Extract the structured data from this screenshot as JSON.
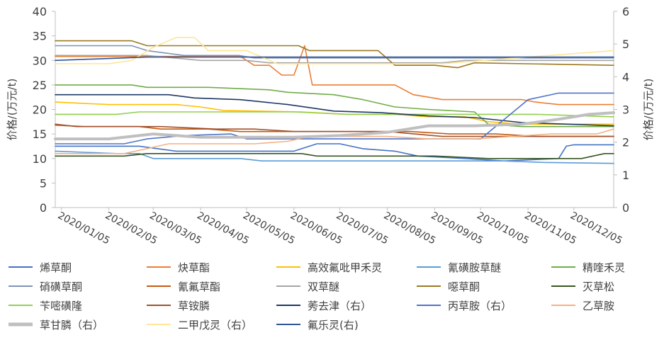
{
  "chart_data": {
    "type": "line",
    "y_left": {
      "label": "价格/(万元/t)",
      "ylim": [
        0,
        40
      ],
      "ticks": [
        "0",
        "5",
        "10",
        "15",
        "20",
        "25",
        "30",
        "35",
        "40"
      ]
    },
    "y_right": {
      "label": "价格/(万元/t)",
      "ylim": [
        0,
        6
      ],
      "ticks": [
        "0",
        "1",
        "2",
        "3",
        "4",
        "5",
        "6"
      ]
    },
    "x_range": [
      "2020/01/01",
      "2020/12/31"
    ],
    "x_ticks": [
      "2020/01/05",
      "2020/02/05",
      "2020/03/05",
      "2020/04/05",
      "2020/05/05",
      "2020/06/05",
      "2020/07/05",
      "2020/08/05",
      "2020/09/05",
      "2020/10/05",
      "2020/11/05",
      "2020/12/05"
    ],
    "grid": false,
    "legend_position": "bottom",
    "series": [
      {
        "name": "烯草酮",
        "axis": "left",
        "color": "#4472c4",
        "width": 1.6,
        "points": [
          [
            "2020/01/01",
            12.5
          ],
          [
            "2020/02/25",
            12.5
          ],
          [
            "2020/03/08",
            12.0
          ],
          [
            "2020/03/20",
            11.5
          ],
          [
            "2020/04/30",
            11.5
          ],
          [
            "2020/06/05",
            11.5
          ],
          [
            "2020/06/20",
            13.0
          ],
          [
            "2020/07/05",
            13.0
          ],
          [
            "2020/07/20",
            12.0
          ],
          [
            "2020/08/10",
            11.5
          ],
          [
            "2020/08/25",
            10.5
          ],
          [
            "2020/09/25",
            10.0
          ],
          [
            "2020/10/20",
            9.5
          ],
          [
            "2020/11/25",
            10.0
          ],
          [
            "2020/11/30",
            12.5
          ],
          [
            "2020/12/05",
            12.8
          ],
          [
            "2020/12/31",
            12.8
          ]
        ]
      },
      {
        "name": "炔草酯",
        "axis": "left",
        "color": "#ed7d31",
        "width": 1.6,
        "points": [
          [
            "2020/01/01",
            30.8
          ],
          [
            "2020/05/01",
            30.8
          ],
          [
            "2020/05/10",
            29.0
          ],
          [
            "2020/05/20",
            29.0
          ],
          [
            "2020/05/28",
            27.0
          ],
          [
            "2020/06/05",
            27.0
          ],
          [
            "2020/06/12",
            33.0
          ],
          [
            "2020/06/17",
            25.0
          ],
          [
            "2020/07/25",
            25.0
          ],
          [
            "2020/08/10",
            25.0
          ],
          [
            "2020/08/22",
            23.0
          ],
          [
            "2020/09/01",
            22.5
          ],
          [
            "2020/09/10",
            22.0
          ],
          [
            "2020/10/15",
            22.0
          ],
          [
            "2020/11/01",
            22.0
          ],
          [
            "2020/11/10",
            21.5
          ],
          [
            "2020/11/25",
            21.0
          ],
          [
            "2020/12/31",
            21.0
          ]
        ]
      },
      {
        "name": "高效氟吡甲禾灵",
        "axis": "left",
        "color": "#ffc000",
        "width": 1.6,
        "points": [
          [
            "2020/01/01",
            21.5
          ],
          [
            "2020/02/05",
            21.0
          ],
          [
            "2020/03/20",
            21.0
          ],
          [
            "2020/04/05",
            20.5
          ],
          [
            "2020/04/20",
            19.8
          ],
          [
            "2020/06/10",
            19.5
          ],
          [
            "2020/07/10",
            19.0
          ],
          [
            "2020/08/10",
            19.0
          ],
          [
            "2020/09/01",
            18.5
          ],
          [
            "2020/09/25",
            18.5
          ],
          [
            "2020/10/10",
            17.5
          ],
          [
            "2020/11/01",
            17.0
          ],
          [
            "2020/12/31",
            17.0
          ]
        ]
      },
      {
        "name": "氰磺胺草醚",
        "axis": "left",
        "color": "#5b9bd5",
        "width": 1.6,
        "points": [
          [
            "2020/01/01",
            11.5
          ],
          [
            "2020/02/10",
            11.0
          ],
          [
            "2020/02/25",
            11.0
          ],
          [
            "2020/03/05",
            10.0
          ],
          [
            "2020/05/01",
            10.0
          ],
          [
            "2020/05/15",
            9.5
          ],
          [
            "2020/09/10",
            9.5
          ],
          [
            "2020/10/20",
            9.5
          ],
          [
            "2020/11/15",
            9.2
          ],
          [
            "2020/12/31",
            9.0
          ]
        ]
      },
      {
        "name": "精喹禾灵",
        "axis": "left",
        "color": "#70ad47",
        "width": 1.6,
        "points": [
          [
            "2020/01/01",
            25.0
          ],
          [
            "2020/02/20",
            25.0
          ],
          [
            "2020/03/01",
            24.5
          ],
          [
            "2020/04/10",
            24.5
          ],
          [
            "2020/05/20",
            24.0
          ],
          [
            "2020/06/01",
            23.5
          ],
          [
            "2020/07/01",
            23.0
          ],
          [
            "2020/07/20",
            22.0
          ],
          [
            "2020/08/10",
            20.5
          ],
          [
            "2020/09/01",
            20.0
          ],
          [
            "2020/10/01",
            19.5
          ],
          [
            "2020/10/10",
            17.0
          ],
          [
            "2020/11/01",
            16.5
          ],
          [
            "2020/12/31",
            16.5
          ]
        ]
      },
      {
        "name": "硝磺草酮",
        "axis": "left",
        "color": "#7f93b8",
        "width": 1.6,
        "points": [
          [
            "2020/01/01",
            33.0
          ],
          [
            "2020/02/20",
            33.0
          ],
          [
            "2020/03/01",
            32.0
          ],
          [
            "2020/03/25",
            31.0
          ],
          [
            "2020/04/30",
            31.0
          ],
          [
            "2020/05/10",
            30.5
          ],
          [
            "2020/06/05",
            30.5
          ],
          [
            "2020/12/31",
            30.5
          ]
        ]
      },
      {
        "name": "氰氟草酯",
        "axis": "left",
        "color": "#c55a11",
        "width": 1.6,
        "points": [
          [
            "2020/01/01",
            16.8
          ],
          [
            "2020/01/20",
            16.5
          ],
          [
            "2020/02/25",
            16.5
          ],
          [
            "2020/03/10",
            16.0
          ],
          [
            "2020/04/10",
            16.0
          ],
          [
            "2020/05/01",
            15.5
          ],
          [
            "2020/06/05",
            15.5
          ],
          [
            "2020/08/20",
            15.5
          ],
          [
            "2020/09/15",
            15.0
          ],
          [
            "2020/10/15",
            15.0
          ],
          [
            "2020/11/10",
            14.5
          ],
          [
            "2020/12/31",
            14.5
          ]
        ]
      },
      {
        "name": "双草醚",
        "axis": "left",
        "color": "#a5a5a5",
        "width": 1.6,
        "points": [
          [
            "2020/01/01",
            31.0
          ],
          [
            "2020/03/01",
            31.0
          ],
          [
            "2020/04/05",
            30.0
          ],
          [
            "2020/05/05",
            30.0
          ],
          [
            "2020/05/20",
            29.5
          ],
          [
            "2020/08/10",
            29.5
          ],
          [
            "2020/09/10",
            29.5
          ],
          [
            "2020/09/25",
            30.0
          ],
          [
            "2020/12/31",
            30.0
          ]
        ]
      },
      {
        "name": "噁草酮",
        "axis": "left",
        "color": "#9c7a24",
        "width": 1.6,
        "points": [
          [
            "2020/01/01",
            34.0
          ],
          [
            "2020/02/20",
            34.0
          ],
          [
            "2020/03/01",
            33.0
          ],
          [
            "2020/04/05",
            33.0
          ],
          [
            "2020/06/08",
            33.0
          ],
          [
            "2020/06/15",
            32.0
          ],
          [
            "2020/07/30",
            32.0
          ],
          [
            "2020/08/10",
            29.0
          ],
          [
            "2020/09/05",
            29.0
          ],
          [
            "2020/09/20",
            28.5
          ],
          [
            "2020/10/01",
            29.5
          ],
          [
            "2020/12/31",
            29.0
          ]
        ]
      },
      {
        "name": "灭草松",
        "axis": "left",
        "color": "#375623",
        "width": 1.6,
        "points": [
          [
            "2020/01/01",
            10.5
          ],
          [
            "2020/02/15",
            10.5
          ],
          [
            "2020/03/01",
            11.0
          ],
          [
            "2020/06/10",
            11.0
          ],
          [
            "2020/06/20",
            10.5
          ],
          [
            "2020/08/01",
            10.5
          ],
          [
            "2020/09/05",
            10.5
          ],
          [
            "2020/10/10",
            10.0
          ],
          [
            "2020/11/20",
            10.0
          ],
          [
            "2020/12/10",
            10.0
          ],
          [
            "2020/12/25",
            11.0
          ],
          [
            "2020/12/31",
            11.0
          ]
        ]
      },
      {
        "name": "苄嘧磺隆",
        "axis": "left",
        "color": "#92d050",
        "width": 1.6,
        "points": [
          [
            "2020/01/01",
            19.0
          ],
          [
            "2020/02/10",
            19.0
          ],
          [
            "2020/02/25",
            19.5
          ],
          [
            "2020/06/05",
            19.5
          ],
          [
            "2020/07/10",
            19.0
          ],
          [
            "2020/08/20",
            19.0
          ],
          [
            "2020/09/15",
            19.0
          ],
          [
            "2020/11/10",
            19.0
          ],
          [
            "2020/12/31",
            18.5
          ]
        ]
      },
      {
        "name": "草铵膦",
        "axis": "left",
        "color": "#a0522d",
        "width": 1.6,
        "points": [
          [
            "2020/01/01",
            17.0
          ],
          [
            "2020/01/15",
            16.5
          ],
          [
            "2020/03/10",
            16.5
          ],
          [
            "2020/04/15",
            16.0
          ],
          [
            "2020/05/10",
            16.0
          ],
          [
            "2020/06/05",
            15.5
          ],
          [
            "2020/08/05",
            15.5
          ],
          [
            "2020/09/10",
            14.5
          ],
          [
            "2020/10/10",
            14.5
          ],
          [
            "2020/11/15",
            14.5
          ],
          [
            "2020/12/01",
            14.5
          ],
          [
            "2020/12/31",
            14.5
          ]
        ]
      },
      {
        "name": "莠去津（右）",
        "axis": "right",
        "color": "#1f3864",
        "width": 1.6,
        "points": [
          [
            "2020/01/01",
            3.45
          ],
          [
            "2020/01/15",
            3.45
          ],
          [
            "2020/02/15",
            3.45
          ],
          [
            "2020/03/15",
            3.45
          ],
          [
            "2020/04/01",
            3.35
          ],
          [
            "2020/05/01",
            3.3
          ],
          [
            "2020/06/01",
            3.15
          ],
          [
            "2020/07/01",
            2.95
          ],
          [
            "2020/08/01",
            2.9
          ],
          [
            "2020/09/01",
            2.8
          ],
          [
            "2020/10/01",
            2.75
          ],
          [
            "2020/11/01",
            2.6
          ],
          [
            "2020/12/01",
            2.55
          ],
          [
            "2020/12/31",
            2.5
          ]
        ]
      },
      {
        "name": "丙草胺（右）",
        "axis": "right",
        "color": "#4f74c8",
        "width": 1.6,
        "points": [
          [
            "2020/01/01",
            1.95
          ],
          [
            "2020/02/15",
            1.95
          ],
          [
            "2020/03/01",
            2.1
          ],
          [
            "2020/03/25",
            2.2
          ],
          [
            "2020/04/25",
            2.25
          ],
          [
            "2020/05/05",
            2.1
          ],
          [
            "2020/06/05",
            2.1
          ],
          [
            "2020/07/05",
            2.1
          ],
          [
            "2020/08/05",
            2.1
          ],
          [
            "2020/09/05",
            2.1
          ],
          [
            "2020/10/05",
            2.1
          ],
          [
            "2020/11/05",
            3.3
          ],
          [
            "2020/11/25",
            3.5
          ],
          [
            "2020/12/31",
            3.5
          ]
        ]
      },
      {
        "name": "乙草胺",
        "axis": "left",
        "color": "#f4b183",
        "width": 1.6,
        "points": [
          [
            "2020/01/01",
            11.0
          ],
          [
            "2020/02/15",
            11.0
          ],
          [
            "2020/03/01",
            12.0
          ],
          [
            "2020/03/15",
            13.0
          ],
          [
            "2020/05/10",
            13.0
          ],
          [
            "2020/06/01",
            13.5
          ],
          [
            "2020/06/15",
            14.5
          ],
          [
            "2020/07/10",
            14.5
          ],
          [
            "2020/08/05",
            14.5
          ],
          [
            "2020/09/01",
            14.0
          ],
          [
            "2020/10/01",
            14.0
          ],
          [
            "2020/11/20",
            15.0
          ],
          [
            "2020/12/20",
            15.0
          ],
          [
            "2020/12/31",
            16.0
          ]
        ]
      },
      {
        "name": "草甘膦（右）",
        "axis": "right",
        "color": "#bfbfbf",
        "width": 4,
        "points": [
          [
            "2020/01/01",
            2.1
          ],
          [
            "2020/02/05",
            2.1
          ],
          [
            "2020/03/05",
            2.25
          ],
          [
            "2020/04/05",
            2.15
          ],
          [
            "2020/05/05",
            2.15
          ],
          [
            "2020/06/05",
            2.15
          ],
          [
            "2020/07/05",
            2.2
          ],
          [
            "2020/08/05",
            2.3
          ],
          [
            "2020/09/01",
            2.5
          ],
          [
            "2020/10/01",
            2.5
          ],
          [
            "2020/11/01",
            2.55
          ],
          [
            "2020/11/25",
            2.7
          ],
          [
            "2020/12/15",
            2.85
          ],
          [
            "2020/12/31",
            2.9
          ]
        ]
      },
      {
        "name": "二甲戊灵（右）",
        "axis": "right",
        "color": "#ffe699",
        "width": 1.6,
        "points": [
          [
            "2020/01/01",
            4.4
          ],
          [
            "2020/02/05",
            4.4
          ],
          [
            "2020/02/20",
            4.5
          ],
          [
            "2020/03/05",
            4.9
          ],
          [
            "2020/03/20",
            5.2
          ],
          [
            "2020/04/01",
            5.2
          ],
          [
            "2020/04/10",
            4.8
          ],
          [
            "2020/05/05",
            4.8
          ],
          [
            "2020/05/25",
            4.4
          ],
          [
            "2020/08/20",
            4.4
          ],
          [
            "2020/09/10",
            4.4
          ],
          [
            "2020/11/05",
            4.6
          ],
          [
            "2020/12/31",
            4.8
          ]
        ]
      },
      {
        "name": "氟乐灵(右)",
        "axis": "right",
        "color": "#2f5597",
        "width": 1.6,
        "points": [
          [
            "2020/01/01",
            4.5
          ],
          [
            "2020/03/01",
            4.6
          ],
          [
            "2020/12/31",
            4.6
          ]
        ]
      }
    ]
  },
  "legend": [
    "烯草酮",
    "炔草酯",
    "高效氟吡甲禾灵",
    "氰磺胺草醚",
    "精喹禾灵",
    "硝磺草酮",
    "氰氟草酯",
    "双草醚",
    "噁草酮",
    "灭草松",
    "苄嘧磺隆",
    "草铵膦",
    "莠去津（右）",
    "丙草胺（右）",
    "乙草胺",
    "草甘膦（右）",
    "二甲戊灵（右）",
    "氟乐灵(右)"
  ]
}
